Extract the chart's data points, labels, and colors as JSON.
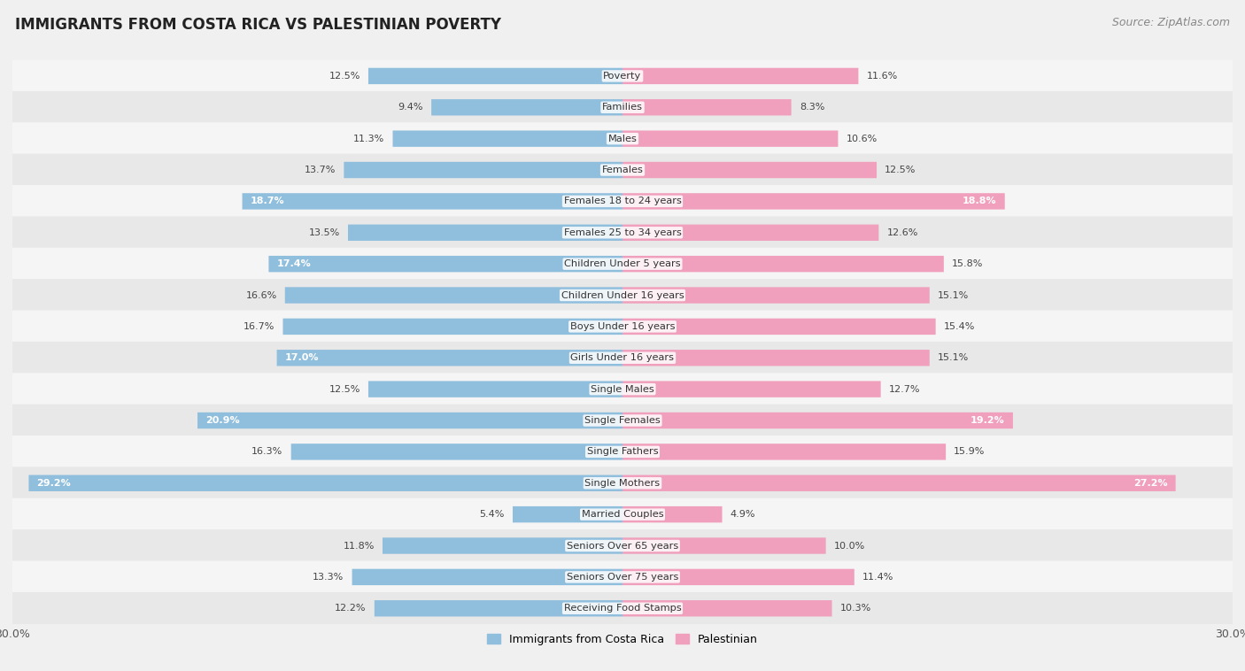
{
  "title": "IMMIGRANTS FROM COSTA RICA VS PALESTINIAN POVERTY",
  "source": "Source: ZipAtlas.com",
  "categories": [
    "Poverty",
    "Families",
    "Males",
    "Females",
    "Females 18 to 24 years",
    "Females 25 to 34 years",
    "Children Under 5 years",
    "Children Under 16 years",
    "Boys Under 16 years",
    "Girls Under 16 years",
    "Single Males",
    "Single Females",
    "Single Fathers",
    "Single Mothers",
    "Married Couples",
    "Seniors Over 65 years",
    "Seniors Over 75 years",
    "Receiving Food Stamps"
  ],
  "left_values": [
    12.5,
    9.4,
    11.3,
    13.7,
    18.7,
    13.5,
    17.4,
    16.6,
    16.7,
    17.0,
    12.5,
    20.9,
    16.3,
    29.2,
    5.4,
    11.8,
    13.3,
    12.2
  ],
  "right_values": [
    11.6,
    8.3,
    10.6,
    12.5,
    18.8,
    12.6,
    15.8,
    15.1,
    15.4,
    15.1,
    12.7,
    19.2,
    15.9,
    27.2,
    4.9,
    10.0,
    11.4,
    10.3
  ],
  "left_color": "#90bedd",
  "right_color": "#f0a0bc",
  "left_label": "Immigrants from Costa Rica",
  "right_label": "Palestinian",
  "row_colors": [
    "#f5f5f5",
    "#e8e8e8"
  ],
  "background_color": "#f0f0f0",
  "xlim": 30.0,
  "title_fontsize": 12,
  "source_fontsize": 9,
  "bar_height": 0.52,
  "label_threshold": 17.0
}
